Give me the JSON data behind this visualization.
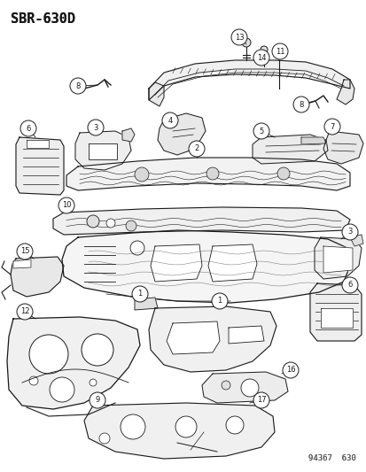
{
  "title": "SBR-630D",
  "footer": "94367  630",
  "bg_color": "#ffffff",
  "lc": "#1a1a1a",
  "title_fontsize": 11,
  "footer_fontsize": 6.5,
  "figsize": [
    4.14,
    5.33
  ],
  "dpi": 100
}
